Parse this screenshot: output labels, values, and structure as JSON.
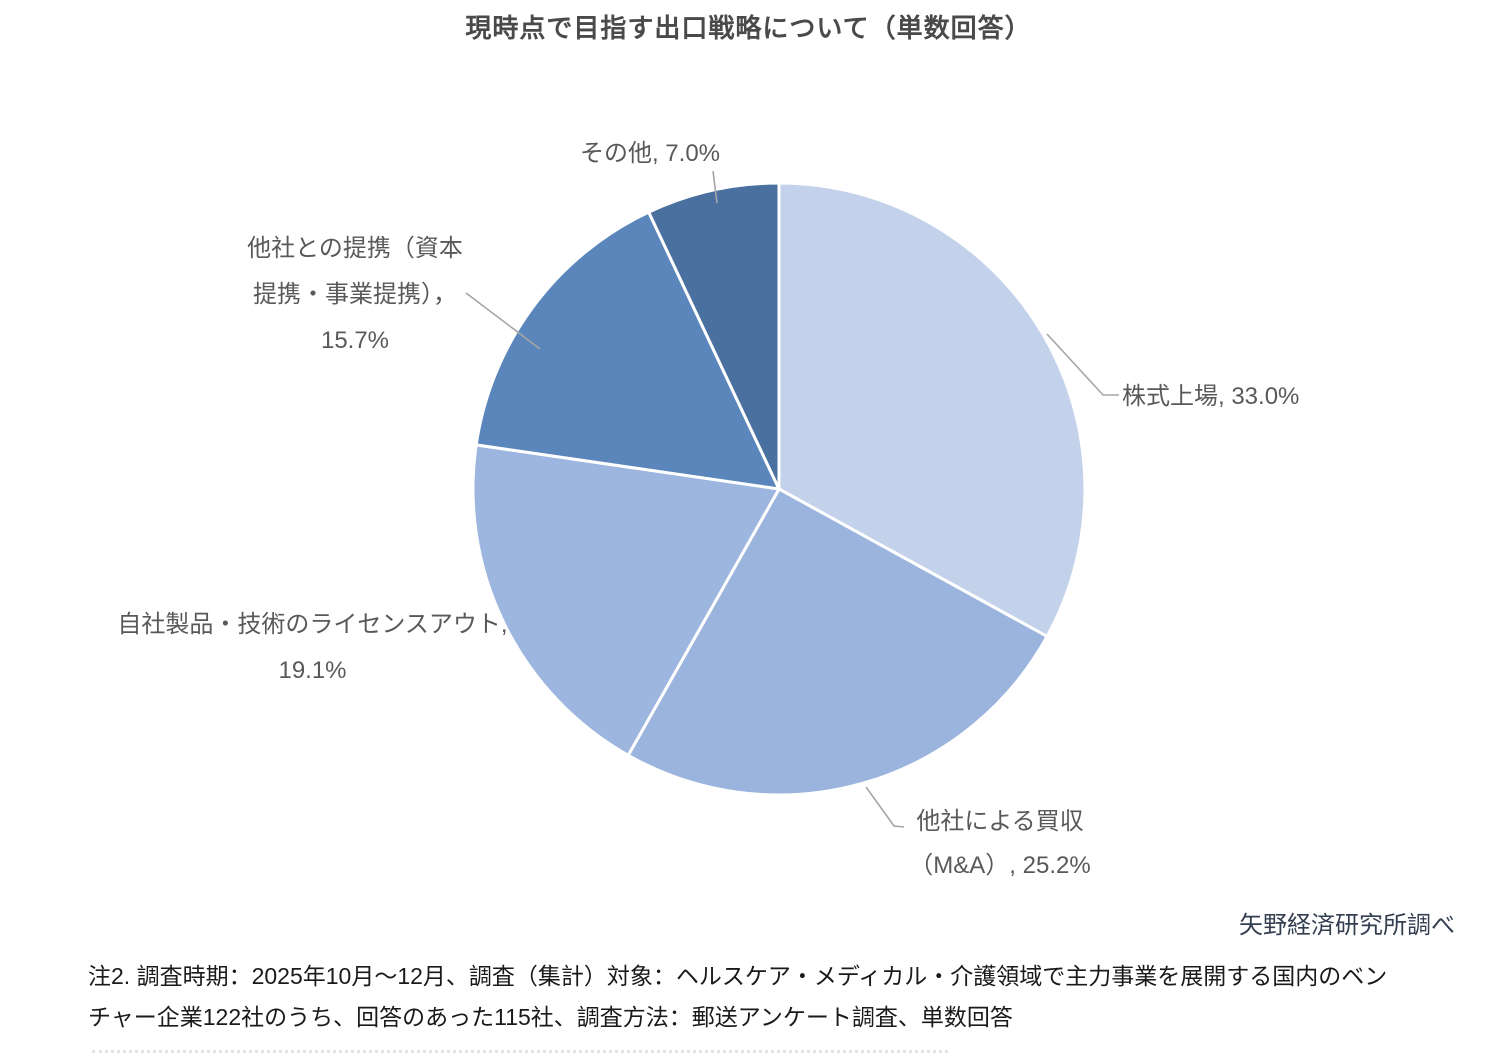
{
  "title": "現時点で目指す出口戦略について（単数回答）",
  "source_credit": "矢野経済研究所調べ",
  "note": {
    "line1": "注2. 調査時期：2025年10月～12月、調査（集計）対象：ヘルスケア・メディカル・介護領域で主力事業を展開する国内のベン",
    "line2": "チャー企業122社のうち、回答のあった115社、調査方法：郵送アンケート調査、単数回答"
  },
  "chart_data": {
    "type": "pie",
    "title": "現時点で目指す出口戦略について（単数回答）",
    "unit": "%",
    "total": 100.0,
    "start_angle_deg": 0,
    "direction": "clockwise",
    "legend": "none",
    "data_labels": "outside, category name + value, gray leader lines",
    "slices": [
      {
        "key": "ipo",
        "label": "株式上場",
        "value": 33.0,
        "color": "#c3d1ea"
      },
      {
        "key": "ma",
        "label": "他社による買収（M&A）",
        "value": 25.2,
        "color": "#9bb4de"
      },
      {
        "key": "license",
        "label": "自社製品・技術のライセンスアウト",
        "value": 19.1,
        "color": "#9db6df"
      },
      {
        "key": "partnership",
        "label": "他社との提携（資本提携・事業提携）",
        "value": 15.7,
        "color": "#5b86bb"
      },
      {
        "key": "other",
        "label": "その他",
        "value": 7.0,
        "color": "#4a709f"
      }
    ]
  },
  "callouts": {
    "other": {
      "lines": [
        "その他, 7.0%"
      ]
    },
    "partnership": {
      "lines": [
        "他社との提携（資本",
        "提携・事業提携），",
        "15.7%"
      ]
    },
    "ipo": {
      "lines": [
        "株式上場, 33.0%"
      ]
    },
    "license": {
      "lines": [
        "自社製品・技術のライセンスアウト,",
        "19.1%"
      ]
    },
    "ma": {
      "lines": [
        "他社による買収",
        "（M&A）, 25.2%"
      ]
    }
  },
  "colors": {
    "title_text": "#4a4a4a",
    "label_text": "#595959",
    "source_text": "#333f50",
    "note_text": "#1a1a1a",
    "leader_line": "#a6a6a6",
    "slice_border": "#ffffff"
  }
}
